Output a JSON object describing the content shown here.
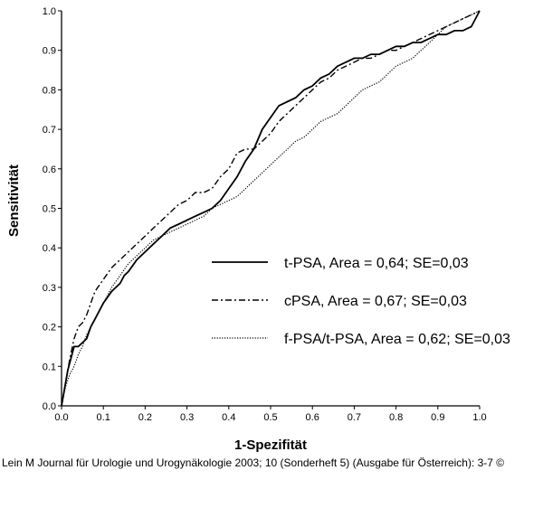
{
  "chart_data": {
    "type": "line",
    "xlabel": "1-Spezifität",
    "ylabel": "Sensitivität",
    "xlim": [
      0.0,
      1.0
    ],
    "ylim": [
      0.0,
      1.0
    ],
    "x_ticks": [
      "0.0",
      "0.1",
      "0.2",
      "0.3",
      "0.4",
      "0.5",
      "0.6",
      "0.7",
      "0.8",
      "0.9",
      "1.0"
    ],
    "y_ticks": [
      "0.0",
      "0.1",
      "0.2",
      "0.3",
      "0.4",
      "0.5",
      "0.6",
      "0.7",
      "0.8",
      "0.9",
      "1.0"
    ],
    "grid": false,
    "legend_placement": "bottom-right",
    "series": [
      {
        "name": "t-PSA, Area = 0,64; SE=0,03",
        "style": "solid",
        "x": [
          0,
          0.005,
          0.01,
          0.015,
          0.02,
          0.025,
          0.03,
          0.04,
          0.05,
          0.06,
          0.07,
          0.08,
          0.09,
          0.1,
          0.12,
          0.14,
          0.15,
          0.16,
          0.18,
          0.2,
          0.22,
          0.24,
          0.26,
          0.28,
          0.3,
          0.32,
          0.34,
          0.36,
          0.38,
          0.4,
          0.42,
          0.44,
          0.46,
          0.48,
          0.5,
          0.52,
          0.54,
          0.56,
          0.58,
          0.6,
          0.62,
          0.64,
          0.66,
          0.68,
          0.7,
          0.72,
          0.74,
          0.76,
          0.78,
          0.8,
          0.82,
          0.84,
          0.86,
          0.88,
          0.9,
          0.92,
          0.94,
          0.96,
          0.98,
          1.0
        ],
        "y": [
          0,
          0.03,
          0.06,
          0.09,
          0.11,
          0.13,
          0.15,
          0.15,
          0.16,
          0.17,
          0.2,
          0.22,
          0.24,
          0.26,
          0.29,
          0.31,
          0.33,
          0.34,
          0.37,
          0.39,
          0.41,
          0.43,
          0.45,
          0.46,
          0.47,
          0.48,
          0.49,
          0.5,
          0.52,
          0.55,
          0.58,
          0.62,
          0.65,
          0.7,
          0.73,
          0.76,
          0.77,
          0.78,
          0.8,
          0.81,
          0.83,
          0.84,
          0.86,
          0.87,
          0.88,
          0.88,
          0.89,
          0.89,
          0.9,
          0.91,
          0.91,
          0.92,
          0.92,
          0.93,
          0.94,
          0.94,
          0.95,
          0.95,
          0.96,
          1.0
        ]
      },
      {
        "name": "cPSA, Area = 0,67; SE=0,03",
        "style": "dashdot",
        "x": [
          0,
          0.01,
          0.02,
          0.03,
          0.04,
          0.05,
          0.06,
          0.07,
          0.08,
          0.1,
          0.12,
          0.14,
          0.16,
          0.18,
          0.2,
          0.22,
          0.24,
          0.26,
          0.28,
          0.3,
          0.32,
          0.34,
          0.36,
          0.38,
          0.4,
          0.42,
          0.44,
          0.46,
          0.48,
          0.5,
          0.52,
          0.54,
          0.56,
          0.58,
          0.6,
          0.62,
          0.64,
          0.66,
          0.68,
          0.7,
          0.72,
          0.74,
          0.76,
          0.78,
          0.8,
          0.82,
          0.84,
          0.86,
          0.88,
          0.9,
          0.92,
          0.94,
          0.96,
          0.98,
          1.0
        ],
        "y": [
          0,
          0.06,
          0.12,
          0.17,
          0.2,
          0.21,
          0.23,
          0.26,
          0.29,
          0.32,
          0.35,
          0.37,
          0.39,
          0.41,
          0.43,
          0.45,
          0.47,
          0.49,
          0.51,
          0.52,
          0.54,
          0.54,
          0.55,
          0.58,
          0.6,
          0.64,
          0.65,
          0.65,
          0.67,
          0.69,
          0.72,
          0.74,
          0.76,
          0.78,
          0.8,
          0.82,
          0.83,
          0.85,
          0.86,
          0.87,
          0.88,
          0.88,
          0.89,
          0.9,
          0.9,
          0.91,
          0.92,
          0.93,
          0.94,
          0.95,
          0.96,
          0.97,
          0.98,
          0.99,
          1.0
        ]
      },
      {
        "name": "f-PSA/t-PSA, Area = 0,62; SE=0,03",
        "style": "dotted",
        "x": [
          0,
          0.01,
          0.02,
          0.03,
          0.04,
          0.05,
          0.06,
          0.08,
          0.1,
          0.12,
          0.14,
          0.16,
          0.18,
          0.2,
          0.22,
          0.24,
          0.26,
          0.28,
          0.3,
          0.32,
          0.34,
          0.36,
          0.38,
          0.4,
          0.42,
          0.44,
          0.46,
          0.48,
          0.5,
          0.52,
          0.54,
          0.56,
          0.58,
          0.6,
          0.62,
          0.64,
          0.66,
          0.68,
          0.7,
          0.72,
          0.74,
          0.76,
          0.78,
          0.8,
          0.82,
          0.84,
          0.86,
          0.88,
          0.9,
          0.92,
          0.94,
          0.96,
          0.98,
          1.0
        ],
        "y": [
          0,
          0.05,
          0.08,
          0.1,
          0.13,
          0.15,
          0.18,
          0.22,
          0.26,
          0.3,
          0.33,
          0.36,
          0.38,
          0.4,
          0.42,
          0.43,
          0.44,
          0.45,
          0.46,
          0.47,
          0.48,
          0.5,
          0.51,
          0.52,
          0.53,
          0.55,
          0.57,
          0.59,
          0.61,
          0.63,
          0.65,
          0.67,
          0.68,
          0.7,
          0.72,
          0.73,
          0.74,
          0.76,
          0.78,
          0.8,
          0.81,
          0.82,
          0.84,
          0.86,
          0.87,
          0.88,
          0.9,
          0.92,
          0.94,
          0.96,
          0.97,
          0.98,
          0.99,
          1.0
        ]
      }
    ]
  },
  "citation": "Lein M Journal für Urologie und Urogynäkologie 2003; 10 (Sonderheft 5) (Ausgabe für Österreich): 3-7 ©"
}
